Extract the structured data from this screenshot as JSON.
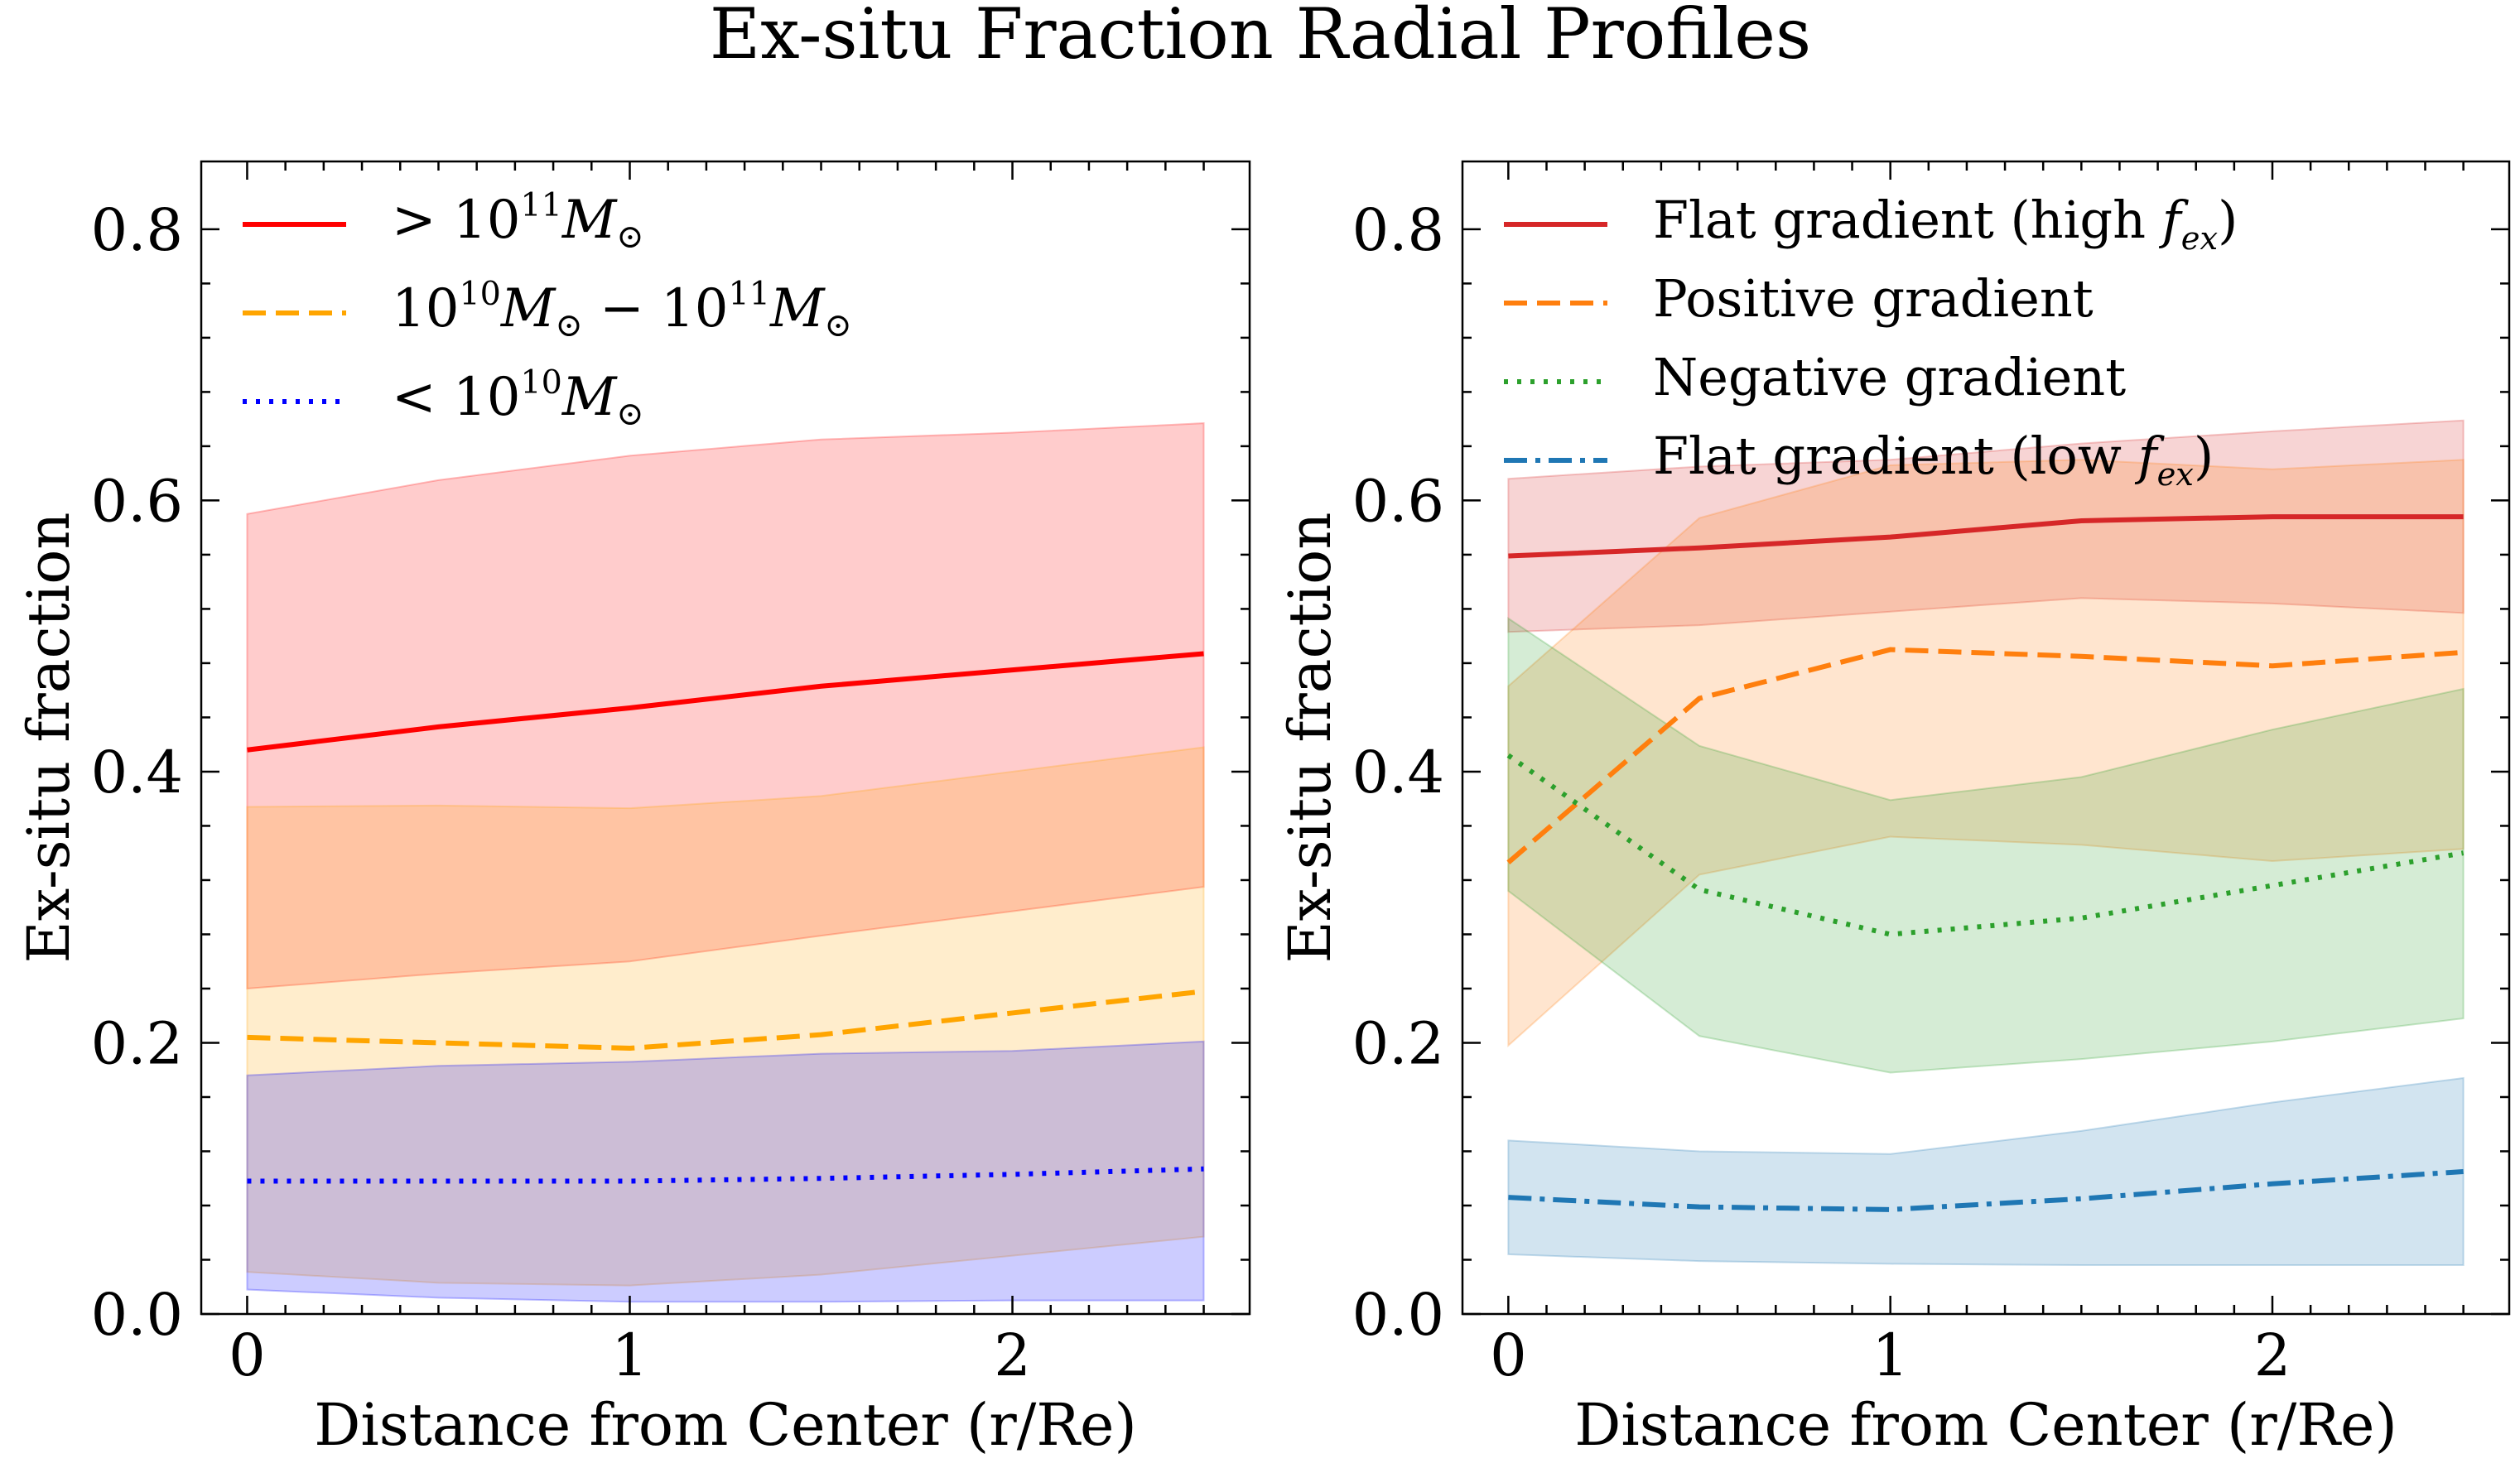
{
  "figure": {
    "title": "Ex-situ Fraction Radial Profiles"
  },
  "chart_data": [
    {
      "type": "line",
      "panel": "left",
      "xlabel": "Distance from Center (r/Re)",
      "ylabel": "Ex-situ fraction",
      "xlim": [
        -0.12,
        2.62
      ],
      "ylim": [
        0.0,
        0.85
      ],
      "x_ticks": [
        0,
        1,
        2
      ],
      "x_tick_labels": [
        "0",
        "1",
        "2"
      ],
      "y_ticks": [
        0.0,
        0.2,
        0.4,
        0.6,
        0.8
      ],
      "y_tick_labels": [
        "0.0",
        "0.2",
        "0.4",
        "0.6",
        "0.8"
      ],
      "legend_position": "top-left",
      "x": [
        0,
        0.5,
        1,
        1.5,
        2,
        2.5
      ],
      "series": [
        {
          "name": "high-mass",
          "legend_label": {
            "prefix": "> 10",
            "sup": "11",
            "main": "M",
            "sub": "⊙"
          },
          "color": "#ff0000",
          "fill_color": "#ff0000",
          "fill_opacity": 0.2,
          "linestyle": "solid",
          "values": [
            0.416,
            0.433,
            0.447,
            0.463,
            0.475,
            0.487
          ],
          "lower": [
            0.24,
            0.251,
            0.26,
            0.279,
            0.297,
            0.315
          ],
          "upper": [
            0.59,
            0.615,
            0.633,
            0.645,
            0.65,
            0.657
          ]
        },
        {
          "name": "intermediate-mass",
          "legend_label": {
            "prefix": "10",
            "sup": "10",
            "main": "M",
            "sub": "⊙",
            "mid": " − 10",
            "sup2": "11",
            "main2": "M",
            "sub2": "⊙"
          },
          "color": "#ffa500",
          "fill_color": "#ffa500",
          "fill_opacity": 0.2,
          "linestyle": "dashed",
          "values": [
            0.204,
            0.2,
            0.196,
            0.206,
            0.222,
            0.238
          ],
          "lower": [
            0.031,
            0.023,
            0.021,
            0.029,
            0.043,
            0.057
          ],
          "upper": [
            0.374,
            0.375,
            0.373,
            0.382,
            0.4,
            0.418
          ]
        },
        {
          "name": "low-mass",
          "legend_label": {
            "prefix": "< 10",
            "sup": "10",
            "main": "M",
            "sub": "⊙"
          },
          "color": "#0000ff",
          "fill_color": "#0000ff",
          "fill_opacity": 0.2,
          "linestyle": "dotted",
          "values": [
            0.098,
            0.098,
            0.098,
            0.1,
            0.103,
            0.107
          ],
          "lower": [
            0.018,
            0.012,
            0.009,
            0.009,
            0.01,
            0.01
          ],
          "upper": [
            0.176,
            0.183,
            0.186,
            0.192,
            0.194,
            0.201
          ]
        }
      ]
    },
    {
      "type": "line",
      "panel": "right",
      "xlabel": "Distance from Center (r/Re)",
      "ylabel": "Ex-situ fraction",
      "xlim": [
        -0.12,
        2.62
      ],
      "ylim": [
        0.0,
        0.85
      ],
      "x_ticks": [
        0,
        1,
        2
      ],
      "x_tick_labels": [
        "0",
        "1",
        "2"
      ],
      "y_ticks": [
        0.0,
        0.2,
        0.4,
        0.6,
        0.8
      ],
      "y_tick_labels": [
        "0.0",
        "0.2",
        "0.4",
        "0.6",
        "0.8"
      ],
      "legend_position": "top-left",
      "x": [
        0,
        0.5,
        1,
        1.5,
        2,
        2.5
      ],
      "series": [
        {
          "name": "flat-high",
          "legend_label": {
            "text": "Flat gradient (high ",
            "main": "f",
            "sub": "ex",
            "suffix": ")"
          },
          "color": "#d62728",
          "fill_color": "#d62728",
          "fill_opacity": 0.2,
          "linestyle": "solid",
          "values": [
            0.559,
            0.565,
            0.573,
            0.585,
            0.588,
            0.588
          ],
          "lower": [
            0.503,
            0.508,
            0.518,
            0.528,
            0.524,
            0.517
          ],
          "upper": [
            0.616,
            0.625,
            0.63,
            0.642,
            0.651,
            0.659
          ]
        },
        {
          "name": "positive",
          "legend_label": {
            "text": "Positive gradient"
          },
          "color": "#ff7f0e",
          "fill_color": "#ff7f0e",
          "fill_opacity": 0.2,
          "linestyle": "dashed",
          "values": [
            0.333,
            0.454,
            0.49,
            0.485,
            0.478,
            0.488
          ],
          "lower": [
            0.198,
            0.324,
            0.352,
            0.346,
            0.334,
            0.343
          ],
          "upper": [
            0.463,
            0.587,
            0.626,
            0.63,
            0.623,
            0.63
          ]
        },
        {
          "name": "negative",
          "legend_label": {
            "text": "Negative gradient"
          },
          "color": "#2ca02c",
          "fill_color": "#2ca02c",
          "fill_opacity": 0.2,
          "linestyle": "dotted",
          "values": [
            0.412,
            0.313,
            0.28,
            0.292,
            0.316,
            0.34
          ],
          "lower": [
            0.312,
            0.205,
            0.178,
            0.188,
            0.201,
            0.218
          ],
          "upper": [
            0.513,
            0.419,
            0.379,
            0.396,
            0.431,
            0.461
          ]
        },
        {
          "name": "flat-low",
          "legend_label": {
            "text": "Flat gradient (low ",
            "main": "f",
            "sub": "ex",
            "suffix": ")"
          },
          "color": "#1f77b4",
          "fill_color": "#1f77b4",
          "fill_opacity": 0.2,
          "linestyle": "dashdot",
          "values": [
            0.086,
            0.079,
            0.077,
            0.085,
            0.096,
            0.105
          ],
          "lower": [
            0.044,
            0.039,
            0.037,
            0.036,
            0.036,
            0.036
          ],
          "upper": [
            0.128,
            0.12,
            0.118,
            0.135,
            0.156,
            0.174
          ]
        }
      ]
    }
  ]
}
